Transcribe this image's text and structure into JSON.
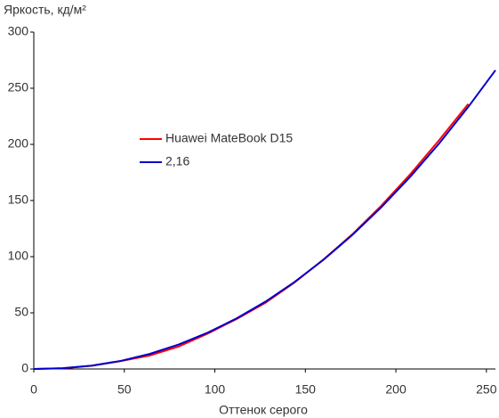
{
  "chart_data": {
    "type": "line",
    "y_axis_label": "Яркость, кд/м²",
    "x_axis_label": "Оттенок серого",
    "x": [
      0,
      16,
      32,
      48,
      64,
      80,
      96,
      112,
      128,
      144,
      160,
      176,
      192,
      208,
      224,
      240,
      255
    ],
    "series": [
      {
        "name": "Huawei MateBook D15",
        "color": "#ff0000",
        "values": [
          0,
          0.6,
          2.9,
          7.0,
          12.0,
          20.0,
          31.5,
          44.5,
          59.0,
          77.0,
          97.5,
          120.0,
          145.5,
          173.5,
          204.0,
          236.0,
          null
        ]
      },
      {
        "name": "2,16",
        "color": "#0000cc",
        "values": [
          0,
          0.67,
          3.0,
          7.2,
          13.4,
          21.8,
          32.3,
          45.0,
          60.0,
          77.4,
          97.2,
          119.4,
          144.1,
          171.3,
          201.0,
          233.4,
          266.0
        ]
      }
    ],
    "xlim": [
      0,
      255
    ],
    "xticks": [
      0,
      50,
      100,
      150,
      200,
      250
    ],
    "ylim": [
      0,
      300
    ],
    "yticks": [
      0,
      50,
      100,
      150,
      200,
      250,
      300
    ],
    "grid": false
  }
}
